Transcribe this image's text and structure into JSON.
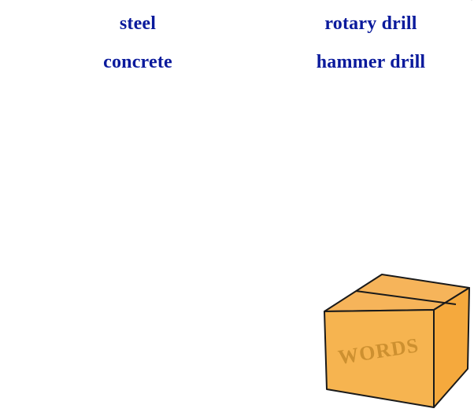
{
  "words": [
    {
      "text": "steel"
    },
    {
      "text": "rotary drill"
    },
    {
      "text": "concrete"
    },
    {
      "text": "hammer drill"
    }
  ],
  "box": {
    "label": "WORDS",
    "colors": {
      "top": "#f6b45a",
      "front": "#f6b450",
      "side": "#f5a93d",
      "outline": "#1a1a1a",
      "stamp": "#c58a2a"
    },
    "icon": "cardboard-box-icon"
  },
  "colors": {
    "word_text": "#0a1a9c",
    "background": "#ffffff"
  }
}
